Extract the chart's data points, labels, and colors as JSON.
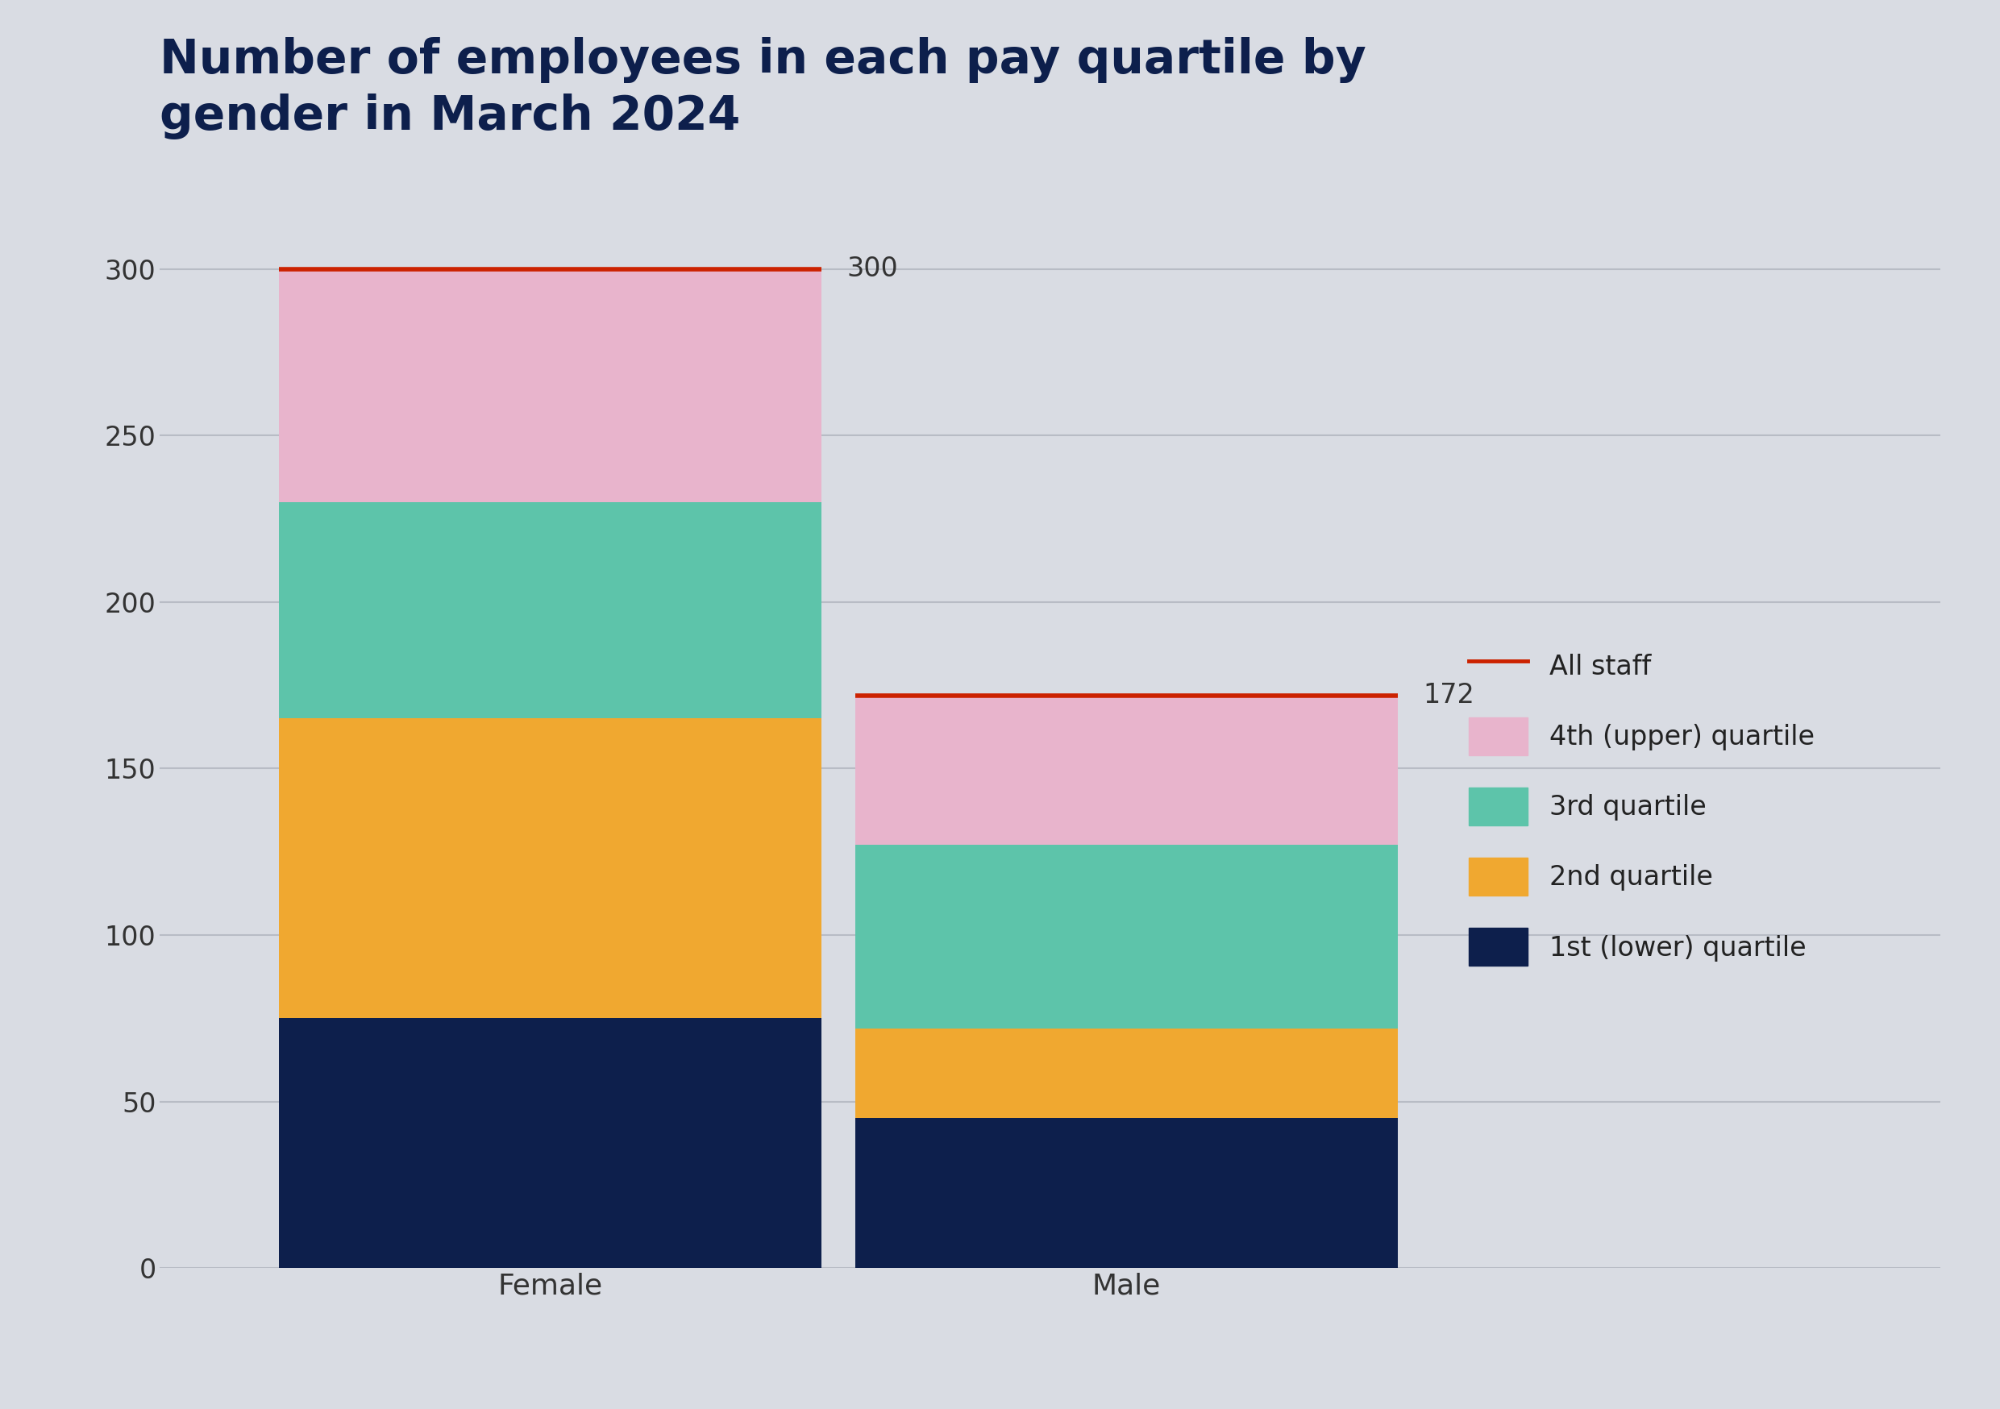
{
  "title": "Number of employees in each pay quartile by\ngender in March 2024",
  "title_color": "#0d1f4c",
  "background_color": "#d9dce3",
  "categories": [
    "Female",
    "Male"
  ],
  "q1_values": [
    75,
    45
  ],
  "q2_values": [
    90,
    27
  ],
  "q3_values": [
    65,
    55
  ],
  "q4_values": [
    70,
    45
  ],
  "totals": [
    300,
    172
  ],
  "colors": {
    "q1": "#0d1f4c",
    "q2": "#f0a830",
    "q3": "#5dc4aa",
    "q4": "#e8b4cc"
  },
  "line_color": "#cc2200",
  "ylim": [
    0,
    330
  ],
  "yticks": [
    0,
    50,
    100,
    150,
    200,
    250,
    300
  ],
  "legend_labels": [
    "All staff",
    "4th (upper) quartile",
    "3rd quartile",
    "2nd quartile",
    "1st (lower) quartile"
  ],
  "bar_width": 0.32,
  "x_positions": [
    0.18,
    0.52
  ],
  "title_fontsize": 42,
  "tick_fontsize": 24,
  "legend_fontsize": 24,
  "label_fontsize": 24
}
